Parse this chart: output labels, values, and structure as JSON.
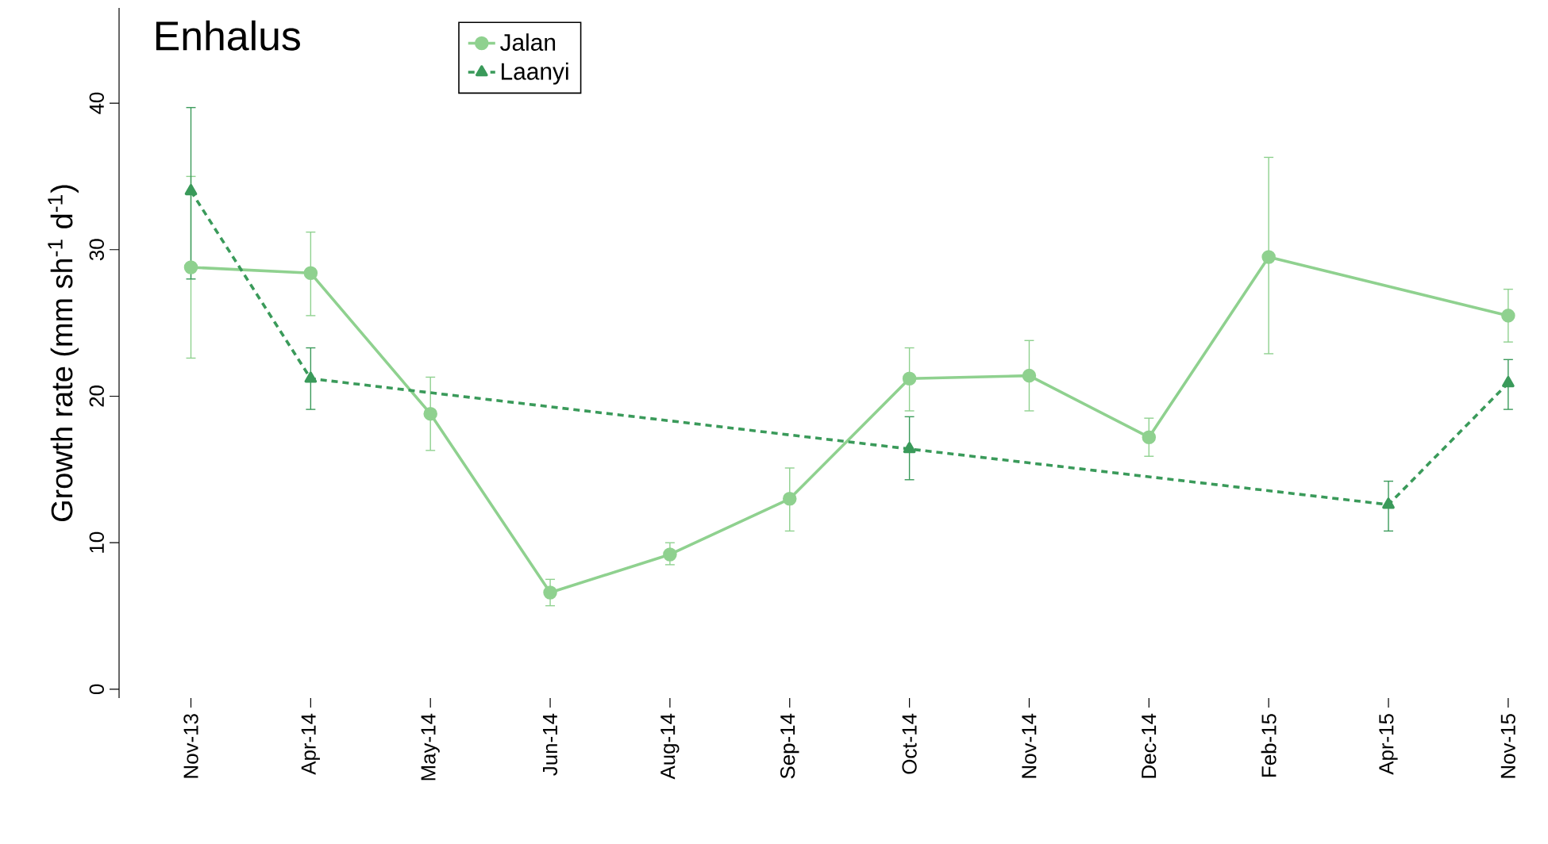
{
  "chart_data": {
    "type": "line",
    "title": "Enhalus",
    "ylabel": "Growth rate (mm sh$^{-1}$ d$^{-1}$)",
    "categories": [
      "Nov-13",
      "Apr-14",
      "May-14",
      "Jun-14",
      "Aug-14",
      "Sep-14",
      "Oct-14",
      "Nov-14",
      "Dec-14",
      "Feb-15",
      "Apr-15",
      "Nov-15"
    ],
    "ylim": [
      -0.6,
      46.5
    ],
    "yticks": [
      0,
      10,
      20,
      30,
      40
    ],
    "legend": "top left",
    "grid": false,
    "series": [
      {
        "name": "Jalan",
        "color": "#8fd18f",
        "marker": "circle",
        "line_style": "solid",
        "values": [
          28.8,
          28.4,
          18.8,
          6.6,
          9.2,
          13.0,
          21.2,
          21.4,
          17.2,
          29.5,
          null,
          25.5
        ],
        "errors": [
          [
            22.6,
            35.0
          ],
          [
            25.5,
            31.2
          ],
          [
            16.3,
            21.3
          ],
          [
            5.7,
            7.5
          ],
          [
            8.5,
            10.0
          ],
          [
            10.8,
            15.1
          ],
          [
            19.0,
            23.3
          ],
          [
            19.0,
            23.8
          ],
          [
            15.9,
            18.5
          ],
          [
            22.9,
            36.3
          ],
          null,
          [
            23.7,
            27.3
          ]
        ]
      },
      {
        "name": "Laanyi",
        "color": "#3a9a5a",
        "marker": "triangle",
        "line_style": "dashed",
        "values": [
          34.0,
          21.2,
          null,
          null,
          null,
          null,
          16.4,
          null,
          null,
          null,
          12.6,
          20.9
        ],
        "errors": [
          [
            28.0,
            39.7
          ],
          [
            19.1,
            23.3
          ],
          null,
          null,
          null,
          null,
          [
            14.3,
            18.6
          ],
          null,
          null,
          null,
          [
            10.8,
            14.2
          ],
          [
            19.1,
            22.5
          ]
        ]
      }
    ]
  }
}
